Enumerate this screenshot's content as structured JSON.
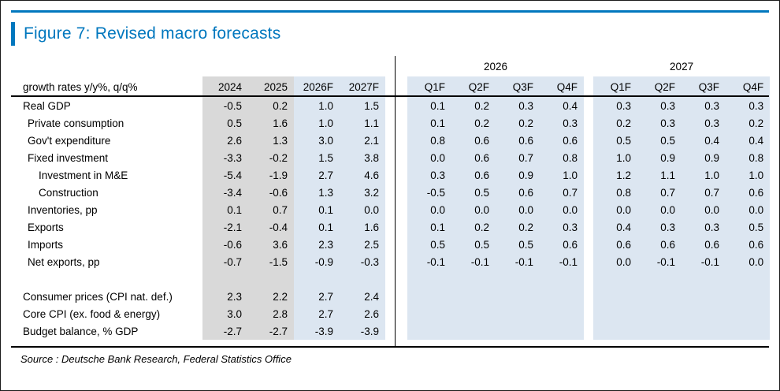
{
  "figure": {
    "title": "Figure 7: Revised macro forecasts",
    "source": "Source : Deutsche Bank Research, Federal Statistics Office"
  },
  "colors": {
    "accent": "#0077BE",
    "column_gray": "#D9D9D9",
    "column_blue": "#DCE6F1",
    "rule": "#000000"
  },
  "chart_data": {
    "type": "table",
    "title": "Figure 7: Revised macro forecasts",
    "corner_label": "growth rates y/y%, q/q%",
    "annual_headers": [
      "2024",
      "2025",
      "2026F",
      "2027F"
    ],
    "group_headers": [
      "2026",
      "2027"
    ],
    "quarter_headers": [
      "Q1F",
      "Q2F",
      "Q3F",
      "Q4F"
    ],
    "rows": [
      {
        "label": "Real GDP",
        "indent": 0,
        "annual": [
          "-0.5",
          "0.2",
          "1.0",
          "1.5"
        ],
        "q2026": [
          "0.1",
          "0.2",
          "0.3",
          "0.4"
        ],
        "q2027": [
          "0.3",
          "0.3",
          "0.3",
          "0.3"
        ]
      },
      {
        "label": "Private consumption",
        "indent": 1,
        "annual": [
          "0.5",
          "1.6",
          "1.0",
          "1.1"
        ],
        "q2026": [
          "0.1",
          "0.2",
          "0.2",
          "0.3"
        ],
        "q2027": [
          "0.2",
          "0.3",
          "0.3",
          "0.2"
        ]
      },
      {
        "label": "Gov't expenditure",
        "indent": 1,
        "annual": [
          "2.6",
          "1.3",
          "3.0",
          "2.1"
        ],
        "q2026": [
          "0.8",
          "0.6",
          "0.6",
          "0.6"
        ],
        "q2027": [
          "0.5",
          "0.5",
          "0.4",
          "0.4"
        ]
      },
      {
        "label": "Fixed investment",
        "indent": 1,
        "annual": [
          "-3.3",
          "-0.2",
          "1.5",
          "3.8"
        ],
        "q2026": [
          "0.0",
          "0.6",
          "0.7",
          "0.8"
        ],
        "q2027": [
          "1.0",
          "0.9",
          "0.9",
          "0.8"
        ]
      },
      {
        "label": "Investment in M&E",
        "indent": 2,
        "annual": [
          "-5.4",
          "-1.9",
          "2.7",
          "4.6"
        ],
        "q2026": [
          "0.3",
          "0.6",
          "0.9",
          "1.0"
        ],
        "q2027": [
          "1.2",
          "1.1",
          "1.0",
          "1.0"
        ]
      },
      {
        "label": "Construction",
        "indent": 2,
        "annual": [
          "-3.4",
          "-0.6",
          "1.3",
          "3.2"
        ],
        "q2026": [
          "-0.5",
          "0.5",
          "0.6",
          "0.7"
        ],
        "q2027": [
          "0.8",
          "0.7",
          "0.7",
          "0.6"
        ]
      },
      {
        "label": "Inventories, pp",
        "indent": 1,
        "annual": [
          "0.1",
          "0.7",
          "0.1",
          "0.0"
        ],
        "q2026": [
          "0.0",
          "0.0",
          "0.0",
          "0.0"
        ],
        "q2027": [
          "0.0",
          "0.0",
          "0.0",
          "0.0"
        ]
      },
      {
        "label": "Exports",
        "indent": 1,
        "annual": [
          "-2.1",
          "-0.4",
          "0.1",
          "1.6"
        ],
        "q2026": [
          "0.1",
          "0.2",
          "0.2",
          "0.3"
        ],
        "q2027": [
          "0.4",
          "0.3",
          "0.3",
          "0.5"
        ]
      },
      {
        "label": "Imports",
        "indent": 1,
        "annual": [
          "-0.6",
          "3.6",
          "2.3",
          "2.5"
        ],
        "q2026": [
          "0.5",
          "0.5",
          "0.5",
          "0.6"
        ],
        "q2027": [
          "0.6",
          "0.6",
          "0.6",
          "0.6"
        ]
      },
      {
        "label": "Net exports, pp",
        "indent": 1,
        "annual": [
          "-0.7",
          "-1.5",
          "-0.9",
          "-0.3"
        ],
        "q2026": [
          "-0.1",
          "-0.1",
          "-0.1",
          "-0.1"
        ],
        "q2027": [
          "0.0",
          "-0.1",
          "-0.1",
          "0.0"
        ]
      },
      {
        "label": "",
        "indent": 0,
        "annual": [
          "",
          "",
          "",
          ""
        ],
        "q2026": [
          "",
          "",
          "",
          ""
        ],
        "q2027": [
          "",
          "",
          "",
          ""
        ]
      },
      {
        "label": "Consumer prices (CPI nat. def.)",
        "indent": 0,
        "annual": [
          "2.3",
          "2.2",
          "2.7",
          "2.4"
        ],
        "q2026": [
          "",
          "",
          "",
          ""
        ],
        "q2027": [
          "",
          "",
          "",
          ""
        ]
      },
      {
        "label": "Core CPI (ex. food & energy)",
        "indent": 0,
        "annual": [
          "3.0",
          "2.8",
          "2.7",
          "2.6"
        ],
        "q2026": [
          "",
          "",
          "",
          ""
        ],
        "q2027": [
          "",
          "",
          "",
          ""
        ]
      },
      {
        "label": "Budget balance, % GDP",
        "indent": 0,
        "annual": [
          "-2.7",
          "-2.7",
          "-3.9",
          "-3.9"
        ],
        "q2026": [
          "",
          "",
          "",
          ""
        ],
        "q2027": [
          "",
          "",
          "",
          ""
        ]
      }
    ],
    "source": "Source : Deutsche Bank Research, Federal Statistics Office"
  }
}
